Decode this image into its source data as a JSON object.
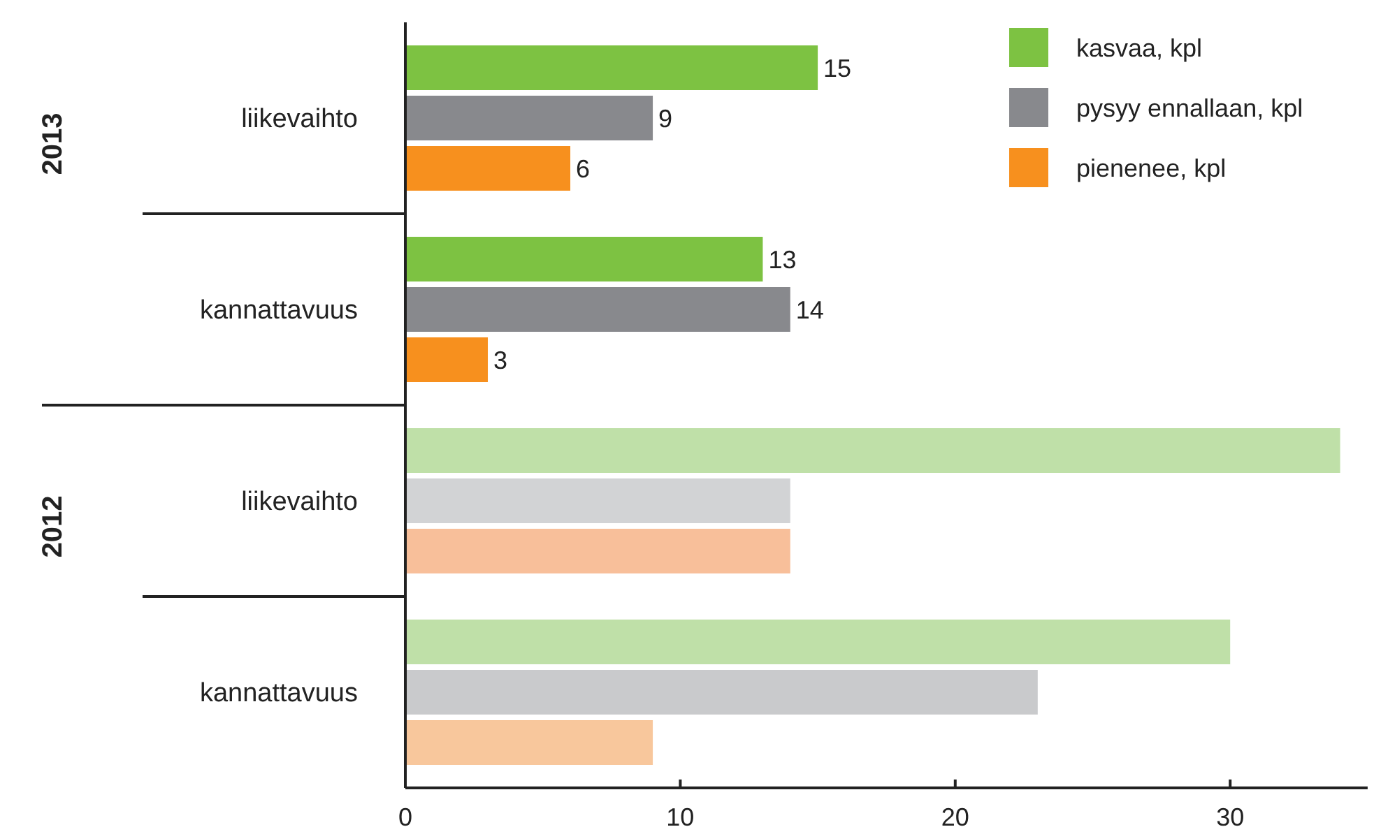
{
  "chart_data": {
    "type": "bar",
    "orientation": "horizontal",
    "categories": [
      "liikevaihto",
      "kannattavuus",
      "liikevaihto",
      "kannattavuus"
    ],
    "series": [
      {
        "name": "kasvaa, kpl",
        "color": "#7dc242",
        "colors": [
          "#7dc242",
          "#7dc242",
          "#bfe0a8",
          "#bfe0a8"
        ],
        "values": [
          15,
          13,
          34,
          30
        ],
        "value_labels": [
          "15",
          "13",
          null,
          null
        ]
      },
      {
        "name": "pysyy ennallaan, kpl",
        "color": "#88898d",
        "colors": [
          "#88898d",
          "#88898d",
          "#d2d3d5",
          "#c9cacc"
        ],
        "values": [
          9,
          14,
          14,
          23
        ],
        "value_labels": [
          "9",
          "14",
          null,
          null
        ]
      },
      {
        "name": "pienenee, kpl",
        "color": "#f7901e",
        "colors": [
          "#f7901e",
          "#f7901e",
          "#f8bf9a",
          "#f8c79c"
        ],
        "values": [
          6,
          3,
          14,
          9
        ],
        "value_labels": [
          "6",
          "3",
          null,
          null
        ]
      }
    ],
    "xlim": [
      0,
      35
    ],
    "xticks": [
      0,
      10,
      20,
      30
    ],
    "grid": false,
    "legend": "top right",
    "annotations": [
      "2013",
      "2012"
    ]
  }
}
